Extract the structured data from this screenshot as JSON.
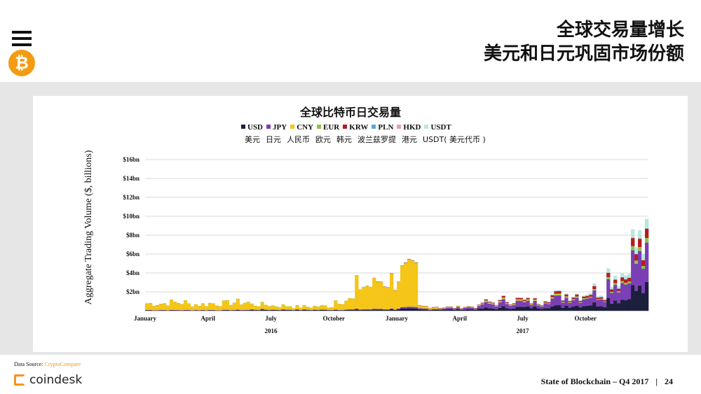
{
  "header": {
    "title_line1": "全球交易量增长",
    "title_line2": "美元和日元巩固市场份额"
  },
  "icons": {
    "menu": "menu-icon",
    "bitcoin": "bitcoin-icon"
  },
  "footer": {
    "source_label": "Data Source:",
    "source_name": "CryptoCompare",
    "brand": "coindesk",
    "report": "State of Blockchain – Q4 2017",
    "separator": "|",
    "page": "24"
  },
  "colors": {
    "USD": "#1b1f3b",
    "JPY": "#7b3fb5",
    "CNY": "#f5c518",
    "EUR": "#8bc34a",
    "KRW": "#b71c1c",
    "PLN": "#5ba7d6",
    "HKD": "#e4a0b0",
    "USDT": "#b8e6e0",
    "accent": "#f7931a"
  },
  "chart_data": {
    "type": "area",
    "title": "全球比特币日交易量",
    "ylabel": "Aggregate Trading Volume ($, billions)",
    "y_ticks": [
      "$16bn",
      "$14bn",
      "$12bn",
      "$10bn",
      "$8bn",
      "$6bn",
      "$4bn",
      "$2bn",
      "$0bn"
    ],
    "ylim": [
      0,
      16
    ],
    "x_ticks": [
      "January",
      "April",
      "July",
      "October",
      "January",
      "April",
      "July",
      "October"
    ],
    "year_labels": [
      "2016",
      "2017"
    ],
    "legend": [
      {
        "code": "USD",
        "label_cn": "美元"
      },
      {
        "code": "JPY",
        "label_cn": "日元"
      },
      {
        "code": "CNY",
        "label_cn": "人民币"
      },
      {
        "code": "EUR",
        "label_cn": "欧元"
      },
      {
        "code": "KRW",
        "label_cn": "韩元"
      },
      {
        "code": "PLN",
        "label_cn": "波兰兹罗提"
      },
      {
        "code": "HKD",
        "label_cn": "港元"
      },
      {
        "code": "USDT",
        "label_cn": "USDT( 美元代币 )"
      }
    ],
    "legend_position": "top",
    "x_unit": "month",
    "x": [
      "2016-01",
      "2016-02",
      "2016-03",
      "2016-04",
      "2016-05",
      "2016-06",
      "2016-07",
      "2016-08",
      "2016-09",
      "2016-10",
      "2016-11",
      "2016-12",
      "2017-01",
      "2017-02",
      "2017-03",
      "2017-04",
      "2017-05",
      "2017-06",
      "2017-07",
      "2017-08",
      "2017-09",
      "2017-10",
      "2017-11",
      "2017-12"
    ],
    "series": [
      {
        "name": "USD",
        "values": [
          0.05,
          0.05,
          0.05,
          0.05,
          0.06,
          0.08,
          0.08,
          0.07,
          0.07,
          0.08,
          0.1,
          0.12,
          0.18,
          0.12,
          0.12,
          0.15,
          0.25,
          0.35,
          0.35,
          0.45,
          0.55,
          0.7,
          1.2,
          2.2
        ]
      },
      {
        "name": "JPY",
        "values": [
          0.02,
          0.02,
          0.02,
          0.02,
          0.03,
          0.05,
          0.04,
          0.04,
          0.04,
          0.05,
          0.06,
          0.08,
          0.12,
          0.1,
          0.15,
          0.2,
          0.45,
          0.55,
          0.45,
          0.8,
          0.85,
          1.0,
          1.8,
          3.0
        ]
      },
      {
        "name": "CNY",
        "values": [
          0.7,
          0.8,
          0.6,
          0.7,
          0.8,
          0.5,
          0.4,
          0.3,
          0.35,
          1.0,
          2.5,
          3.0,
          3.5,
          0.2,
          0.05,
          0.03,
          0.05,
          0.05,
          0.04,
          0.05,
          0.03,
          0.0,
          0.0,
          0.0
        ]
      },
      {
        "name": "EUR",
        "values": [
          0.01,
          0.01,
          0.01,
          0.01,
          0.01,
          0.02,
          0.02,
          0.02,
          0.02,
          0.02,
          0.02,
          0.03,
          0.04,
          0.03,
          0.03,
          0.04,
          0.06,
          0.08,
          0.07,
          0.09,
          0.1,
          0.12,
          0.2,
          0.35
        ]
      },
      {
        "name": "KRW",
        "values": [
          0.0,
          0.0,
          0.0,
          0.0,
          0.0,
          0.0,
          0.0,
          0.0,
          0.0,
          0.0,
          0.0,
          0.01,
          0.02,
          0.01,
          0.02,
          0.03,
          0.08,
          0.12,
          0.1,
          0.2,
          0.2,
          0.25,
          0.4,
          0.7
        ]
      },
      {
        "name": "PLN",
        "values": [
          0.0,
          0.0,
          0.0,
          0.0,
          0.0,
          0.0,
          0.0,
          0.0,
          0.0,
          0.0,
          0.0,
          0.0,
          0.0,
          0.0,
          0.0,
          0.0,
          0.01,
          0.01,
          0.01,
          0.01,
          0.01,
          0.01,
          0.02,
          0.03
        ]
      },
      {
        "name": "HKD",
        "values": [
          0.0,
          0.0,
          0.0,
          0.0,
          0.0,
          0.0,
          0.0,
          0.0,
          0.0,
          0.0,
          0.0,
          0.0,
          0.0,
          0.0,
          0.0,
          0.0,
          0.01,
          0.01,
          0.01,
          0.01,
          0.01,
          0.01,
          0.02,
          0.03
        ]
      },
      {
        "name": "USDT",
        "values": [
          0.0,
          0.0,
          0.0,
          0.0,
          0.0,
          0.0,
          0.0,
          0.0,
          0.0,
          0.0,
          0.0,
          0.0,
          0.0,
          0.0,
          0.0,
          0.0,
          0.02,
          0.03,
          0.03,
          0.06,
          0.1,
          0.2,
          0.4,
          0.7
        ]
      }
    ],
    "grid": true
  }
}
